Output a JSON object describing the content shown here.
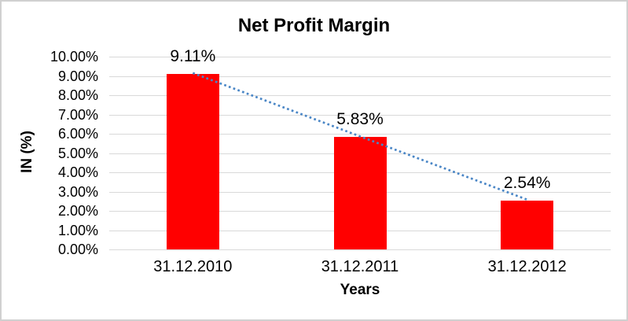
{
  "chart_data": {
    "type": "bar",
    "title": "Net Profit Margin",
    "categories": [
      "31.12.2010",
      "31.12.2011",
      "31.12.2012"
    ],
    "values": [
      9.11,
      5.83,
      2.54
    ],
    "data_labels": [
      "9.11%",
      "5.83%",
      "2.54%"
    ],
    "xlabel": "Years",
    "ylabel": "IN (%)",
    "ylim": [
      0,
      10
    ],
    "ytick_step": 1,
    "ytick_labels": [
      "0.00%",
      "1.00%",
      "2.00%",
      "3.00%",
      "4.00%",
      "5.00%",
      "6.00%",
      "7.00%",
      "8.00%",
      "9.00%",
      "10.00%"
    ],
    "grid": true,
    "legend": "none",
    "trendline": {
      "type": "linear",
      "style": "dotted",
      "from_value": 9.11,
      "to_value": 2.54
    },
    "colors": {
      "bar": "#FF0000",
      "trendline": "#4A86C6",
      "gridline": "#D9D9D9",
      "text": "#000000",
      "border": "#D0D0D0",
      "background": "#FFFFFF"
    }
  }
}
